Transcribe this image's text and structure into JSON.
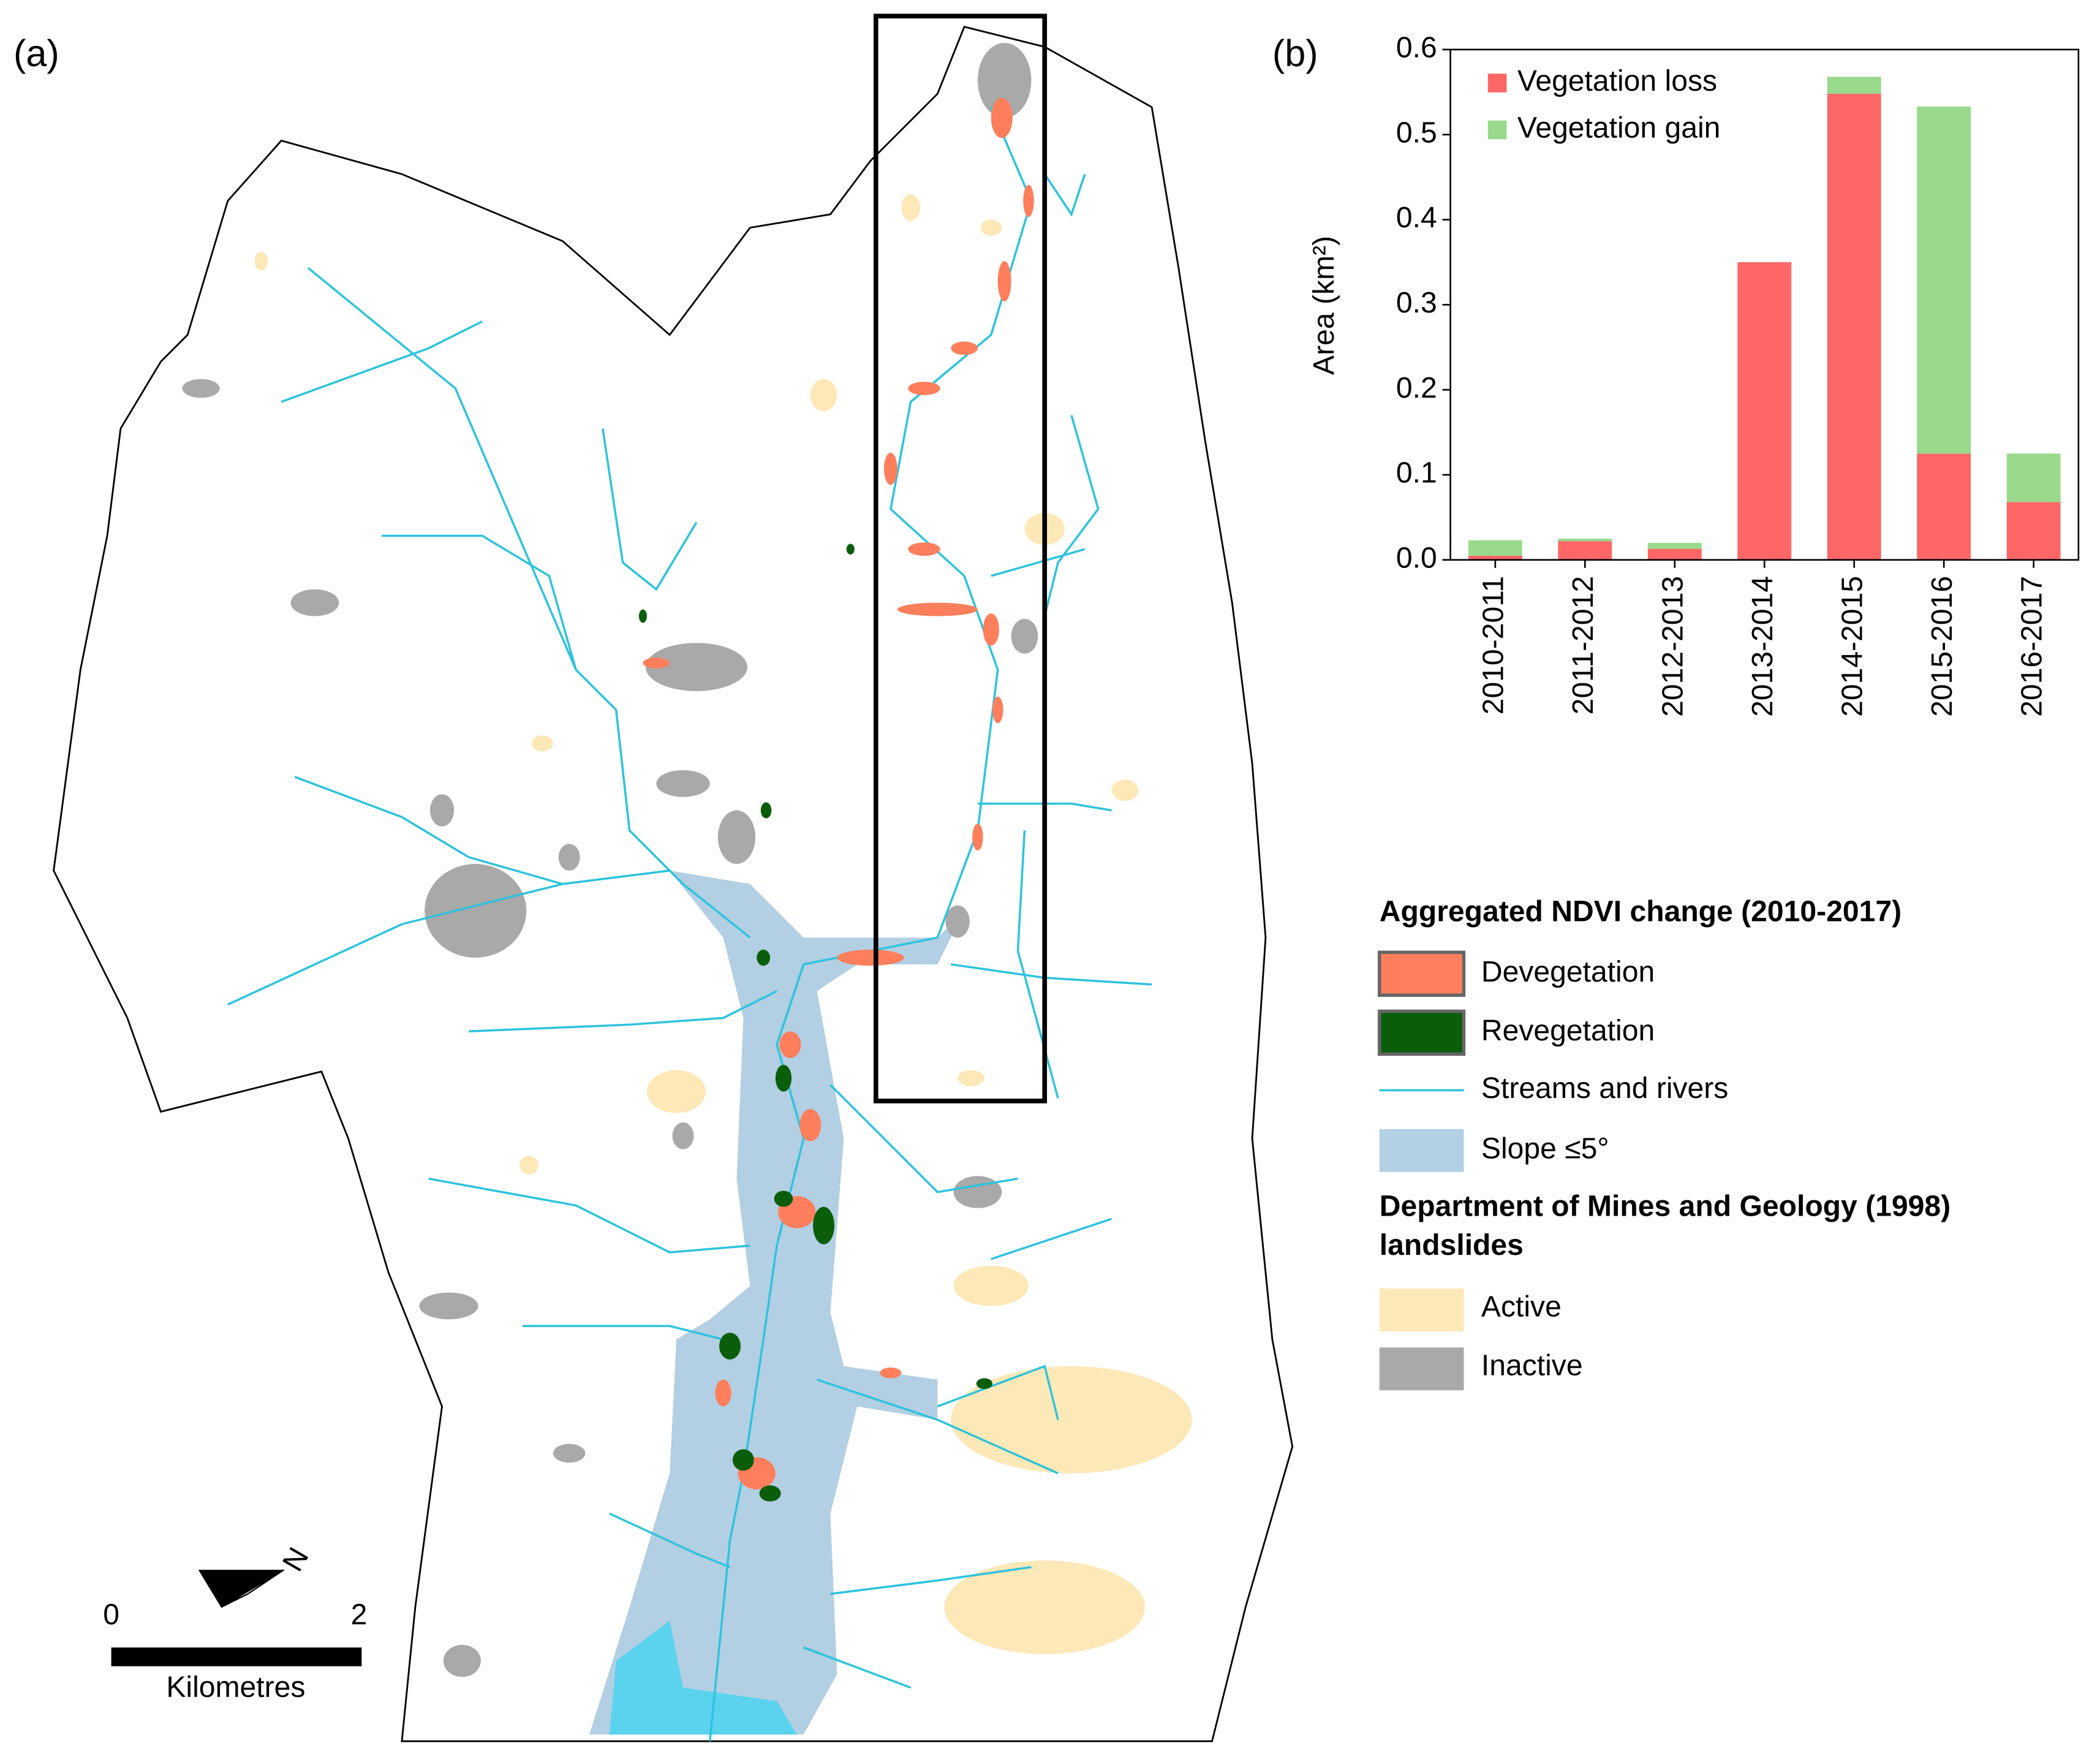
{
  "chart_data": {
    "type": "stacked-bar",
    "panel_label": "(b)",
    "ylabel": "Area (km²)",
    "categories": [
      "2010-2011",
      "2011-2012",
      "2012-2013",
      "2013-2014",
      "2014-2015",
      "2015-2016",
      "2016-2017"
    ],
    "series": [
      {
        "name": "Vegetation loss",
        "color": "#ff6666",
        "values": [
          0.005,
          0.022,
          0.013,
          0.35,
          0.548,
          0.125,
          0.068
        ]
      },
      {
        "name": "Vegetation gain",
        "color": "#99d98c",
        "values": [
          0.018,
          0.003,
          0.007,
          0,
          0.02,
          0.408,
          0.057
        ]
      }
    ],
    "ylim": [
      0,
      0.6
    ],
    "yticks": [
      {
        "value": 0,
        "label": "0.0"
      },
      0.1,
      0.2,
      0.3,
      0.4,
      0.5,
      0.6
    ],
    "legend": "upper left"
  },
  "map": {
    "panel_label": "(a)",
    "north": "N",
    "scale_bar": {
      "start": "0",
      "end": "2",
      "unit": "Kilometres"
    },
    "legend": {
      "title": "Aggregated NDVI change (2010-2017)",
      "items": [
        "Devegetation",
        "Revegetation",
        "Streams and rivers",
        "Slope ≤5°"
      ],
      "landslides_title": [
        "Department of Mines and Geology (1998)",
        "landslides"
      ],
      "landslide_items": [
        "Active",
        "Inactive"
      ]
    }
  }
}
